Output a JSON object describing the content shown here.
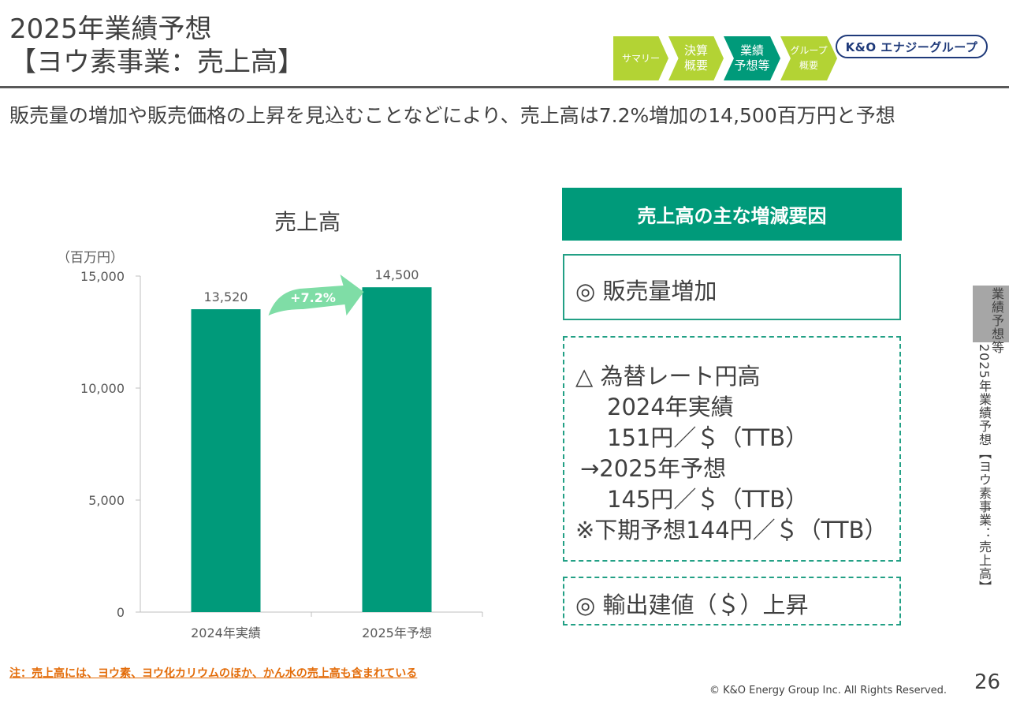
{
  "header": {
    "title_line1": "2025年業績予想",
    "title_line2": "【ヨウ素事業：売上高】"
  },
  "nav": {
    "steps": [
      {
        "label": "サマリー",
        "color": "#b3d334"
      },
      {
        "label": "決算\n概要",
        "color": "#b3d334"
      },
      {
        "label": "業績\n予想等",
        "color": "#009a7a"
      },
      {
        "label": "グループ\n概要",
        "color": "#b3d334"
      }
    ]
  },
  "logo": {
    "text": "K&O エナジーグループ"
  },
  "subtitle": "販売量の増加や販売価格の上昇を見込むことなどにより、売上高は7.2%増加の14,500百万円と予想",
  "chart_title": "売上高",
  "chart_unit": "（百万円）",
  "chart_data": {
    "type": "bar",
    "title": "売上高",
    "ylabel": "（百万円）",
    "categories": [
      "2024年実績",
      "2025年予想"
    ],
    "values": [
      13520,
      14500
    ],
    "value_labels": [
      "13,520",
      "14,500"
    ],
    "ylim": [
      0,
      15000
    ],
    "yticks": [
      0,
      5000,
      10000,
      15000
    ],
    "ytick_labels": [
      "0",
      "5,000",
      "10,000",
      "15,000"
    ],
    "grid": false,
    "bar_color": "#009a7a",
    "annotation": "+7.2%",
    "annotation_color": "#7fdda6"
  },
  "factors": {
    "header": "売上高の主な増減要因",
    "item1": "◎ 販売量増加",
    "item2_lines": [
      "△ 為替レート円高",
      "2024年実績",
      "151円／＄（TTB）",
      "→2025年予想",
      "145円／＄（TTB）",
      "※下期予想144円／＄（TTB）"
    ],
    "item3": "◎ 輸出建値（＄）上昇"
  },
  "side": {
    "tab": "業績予想等",
    "vertical": "2025年業績予想【ヨウ素事業：売上高】"
  },
  "note": "注：売上高には、ヨウ素、ヨウ化カリウムのほか、かん水の売上高も含まれている",
  "copyright": "© K&O Energy Group Inc. All Rights Reserved.",
  "page_number": "26"
}
